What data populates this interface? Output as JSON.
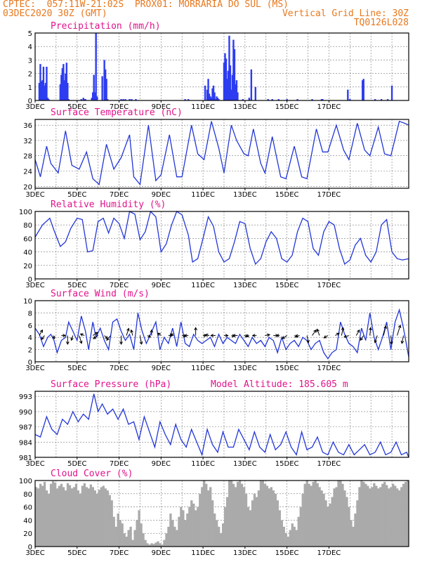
{
  "header": {
    "left_line1": "CPTEC:  057:11W-21:02S  PROX01: MORRARIA DO SUL (MS)",
    "left_line2": "03DEC2020 30Z (GMT)",
    "right_line2": "Vertical Grid Line: 30Z",
    "right_line3": "TQ0126L028"
  },
  "colors": {
    "header": "#e8781e",
    "title": "#e0148c",
    "line": "#2336d8",
    "bar": "#2d3cf0",
    "cloud": "#aaaaaa"
  },
  "x_ticks": [
    "3DEC",
    "5DEC",
    "7DEC",
    "9DEC",
    "11DEC",
    "13DEC",
    "15DEC",
    "17DEC"
  ],
  "chart_data": [
    {
      "type": "bar",
      "title": "Precipitation (mm/h)",
      "ylim": [
        0,
        5
      ],
      "yticks": [
        0,
        1,
        2,
        3,
        4,
        5
      ],
      "x_unit": "days since 3DEC 00Z",
      "x": [
        0.2,
        0.25,
        0.3,
        0.35,
        0.4,
        0.45,
        0.5,
        0.55,
        0.6,
        0.65,
        1.2,
        1.25,
        1.3,
        1.35,
        1.4,
        1.45,
        1.5,
        1.55,
        1.6,
        2.2,
        2.3,
        2.35,
        2.4,
        2.7,
        2.75,
        2.8,
        2.85,
        2.9,
        2.95,
        3.2,
        3.3,
        3.35,
        3.4,
        3.45,
        4.1,
        4.2,
        4.3,
        4.5,
        4.6,
        4.8,
        7.15,
        7.3,
        8.1,
        8.2,
        8.25,
        8.3,
        8.35,
        8.4,
        8.45,
        8.5,
        8.55,
        8.6,
        8.65,
        8.7,
        8.75,
        9.0,
        9.05,
        9.1,
        9.15,
        9.2,
        9.25,
        9.3,
        9.35,
        9.4,
        9.45,
        9.5,
        9.55,
        9.6,
        9.65,
        9.9,
        10.2,
        10.3,
        10.5,
        11.1,
        11.3,
        11.6,
        12.0,
        12.5,
        13.2,
        13.65,
        13.7,
        14.9,
        15.0,
        15.6,
        15.65,
        16.2,
        16.5,
        16.8,
        17.0
      ],
      "values": [
        1.3,
        2.7,
        1.4,
        1.5,
        2.5,
        1.1,
        1.3,
        2.5,
        0.2,
        0.1,
        1.2,
        1.9,
        2.4,
        2.7,
        1.5,
        2.0,
        2.8,
        1.3,
        0.1,
        0.1,
        0.2,
        0.1,
        0.1,
        0.2,
        0.6,
        1.9,
        0.6,
        5.0,
        0.3,
        1.8,
        3.0,
        2.3,
        1.6,
        0.1,
        0.1,
        0.1,
        0.1,
        0.1,
        0.1,
        0.1,
        0.1,
        0.1,
        1.1,
        0.8,
        1.6,
        0.5,
        0.3,
        0.2,
        0.9,
        1.1,
        0.6,
        0.1,
        0.3,
        0.2,
        0.1,
        2.8,
        3.5,
        3.1,
        1.6,
        2.2,
        4.8,
        2.6,
        0.8,
        1.9,
        4.5,
        3.8,
        1.2,
        1.5,
        0.6,
        0.1,
        0.2,
        2.3,
        1.0,
        0.1,
        0.1,
        0.1,
        0.1,
        0.1,
        0.1,
        0.1,
        0.1,
        0.8,
        0.1,
        1.5,
        1.6,
        0.1,
        0.1,
        0.1,
        1.1
      ]
    },
    {
      "type": "line",
      "title": "Surface Temperature (nC)",
      "ylim": [
        19.5,
        37.5
      ],
      "yticks": [
        20,
        24,
        28,
        32,
        36
      ],
      "x_unit": "days since 3DEC 00Z",
      "x": [
        0,
        0.25,
        0.55,
        0.75,
        1.1,
        1.45,
        1.75,
        2.1,
        2.45,
        2.75,
        3.05,
        3.4,
        3.75,
        4.1,
        4.5,
        4.7,
        5.0,
        5.4,
        5.75,
        6.0,
        6.4,
        6.75,
        7.0,
        7.45,
        7.75,
        8.05,
        8.4,
        8.75,
        9.0,
        9.35,
        9.6,
        9.95,
        10.15,
        10.4,
        10.75,
        10.95,
        11.3,
        11.7,
        11.95,
        12.35,
        12.7,
        12.95,
        13.4,
        13.7,
        13.95,
        14.35,
        14.7,
        14.95,
        15.35,
        15.7,
        15.95,
        16.35,
        16.65,
        16.95,
        17.35,
        17.6,
        17.8
      ],
      "values": [
        27,
        22.5,
        30.5,
        26,
        23.5,
        34.5,
        25.5,
        24.5,
        29,
        22,
        20.5,
        31,
        24.5,
        27.5,
        33.5,
        22.5,
        20.5,
        36,
        21.5,
        23,
        33.5,
        22.5,
        22.5,
        36,
        28.5,
        27,
        37,
        30,
        23.5,
        36,
        32,
        28.5,
        28,
        35,
        26,
        23.5,
        33,
        22.5,
        22,
        30.5,
        22.5,
        22,
        35,
        29,
        29,
        36,
        29.5,
        27,
        36.5,
        29.5,
        28,
        35.5,
        28.5,
        28,
        37,
        36.5,
        36
      ]
    },
    {
      "type": "line",
      "title": "Relative Humidity (%)",
      "ylim": [
        0,
        100
      ],
      "yticks": [
        0,
        20,
        40,
        60,
        80,
        100
      ],
      "x_unit": "days since 3DEC 00Z",
      "x": [
        0,
        0.35,
        0.7,
        0.9,
        1.2,
        1.45,
        1.7,
        2.0,
        2.25,
        2.5,
        2.75,
        3.0,
        3.25,
        3.5,
        3.75,
        4.0,
        4.25,
        4.5,
        4.75,
        5.0,
        5.25,
        5.5,
        5.75,
        6.0,
        6.25,
        6.5,
        6.75,
        7.0,
        7.3,
        7.5,
        7.75,
        8.0,
        8.25,
        8.5,
        8.75,
        9.0,
        9.25,
        9.5,
        9.75,
        10.0,
        10.25,
        10.5,
        10.75,
        11.0,
        11.25,
        11.5,
        11.75,
        12.0,
        12.25,
        12.5,
        12.75,
        13.0,
        13.25,
        13.5,
        13.75,
        14.0,
        14.25,
        14.5,
        14.75,
        15.0,
        15.25,
        15.5,
        15.75,
        16.0,
        16.25,
        16.5,
        16.75,
        17.0,
        17.25,
        17.5,
        17.8
      ],
      "values": [
        62,
        80,
        90,
        72,
        48,
        55,
        75,
        90,
        88,
        40,
        42,
        85,
        90,
        68,
        90,
        82,
        60,
        100,
        96,
        58,
        70,
        100,
        92,
        40,
        52,
        80,
        100,
        95,
        65,
        25,
        30,
        60,
        92,
        78,
        40,
        25,
        30,
        55,
        85,
        82,
        45,
        22,
        30,
        55,
        70,
        60,
        30,
        25,
        35,
        70,
        90,
        85,
        45,
        35,
        70,
        85,
        80,
        45,
        22,
        28,
        50,
        60,
        35,
        25,
        40,
        80,
        88,
        40,
        30,
        28,
        30
      ]
    },
    {
      "type": "line",
      "title": "Surface Wind (m/s)",
      "ylim": [
        0,
        10
      ],
      "yticks": [
        0,
        2,
        4,
        6,
        8,
        10
      ],
      "x_unit": "days since 3DEC 00Z",
      "x": [
        0,
        0.2,
        0.4,
        0.6,
        0.75,
        0.9,
        1.05,
        1.25,
        1.45,
        1.6,
        1.8,
        2.0,
        2.2,
        2.4,
        2.55,
        2.75,
        2.9,
        3.1,
        3.3,
        3.5,
        3.7,
        3.9,
        4.1,
        4.3,
        4.5,
        4.7,
        4.9,
        5.1,
        5.3,
        5.5,
        5.75,
        5.95,
        6.15,
        6.35,
        6.55,
        6.75,
        6.95,
        7.15,
        7.35,
        7.55,
        7.75,
        7.95,
        8.15,
        8.35,
        8.55,
        8.75,
        8.95,
        9.15,
        9.35,
        9.55,
        9.75,
        9.95,
        10.15,
        10.35,
        10.55,
        10.75,
        10.95,
        11.15,
        11.35,
        11.55,
        11.75,
        11.95,
        12.15,
        12.35,
        12.55,
        12.75,
        12.95,
        13.15,
        13.35,
        13.55,
        13.75,
        13.95,
        14.15,
        14.35,
        14.55,
        14.75,
        14.95,
        15.15,
        15.35,
        15.55,
        15.75,
        15.95,
        16.15,
        16.35,
        16.55,
        16.75,
        16.95,
        17.15,
        17.35,
        17.55,
        17.8
      ],
      "values": [
        5.5,
        4.5,
        2.5,
        4,
        4.5,
        3.5,
        1.5,
        3.5,
        4,
        6.5,
        5,
        3.5,
        7.5,
        5,
        2,
        6.5,
        4,
        5.5,
        3.5,
        2,
        6.5,
        7,
        5,
        3.5,
        4.5,
        2,
        8,
        5,
        3,
        4.5,
        6.5,
        2,
        4,
        3,
        5.5,
        2.5,
        6.5,
        3,
        2.5,
        4.5,
        3.5,
        3,
        3.5,
        4,
        2.5,
        4.5,
        3,
        4,
        3.5,
        3,
        4.5,
        3.5,
        2.5,
        4,
        3,
        3.5,
        2.5,
        4,
        3.5,
        1.5,
        4,
        2,
        3,
        3.5,
        2.5,
        4,
        3.5,
        2,
        3,
        3.5,
        1.5,
        0.5,
        1.5,
        2,
        6.5,
        4.5,
        3,
        2.5,
        1.5,
        5.5,
        3.5,
        8,
        4,
        2,
        4,
        6.5,
        2,
        6.5,
        8.5,
        5.5,
        0.8
      ],
      "arrows": [
        {
          "x": 0.2,
          "dx": 0.2,
          "dy": -0.35
        },
        {
          "x": 0.45,
          "dx": -0.2,
          "dy": 0.25
        },
        {
          "x": 0.85,
          "dx": 0.1,
          "dy": 0.2
        },
        {
          "x": 1.25,
          "dx": 0.25,
          "dy": 0.0
        },
        {
          "x": 1.55,
          "dx": 0.0,
          "dy": 0.55
        },
        {
          "x": 1.8,
          "dx": -0.1,
          "dy": 0.3
        },
        {
          "x": 2.1,
          "dx": 0.15,
          "dy": 0.5
        },
        {
          "x": 2.35,
          "dx": -0.25,
          "dy": -0.1
        },
        {
          "x": 2.75,
          "dx": 0.3,
          "dy": -0.2
        },
        {
          "x": 3.0,
          "dx": -0.3,
          "dy": 0.2
        },
        {
          "x": 3.3,
          "dx": 0.2,
          "dy": 0.2
        },
        {
          "x": 3.6,
          "dx": -0.25,
          "dy": 0.3
        },
        {
          "x": 4.1,
          "dx": 0.0,
          "dy": 0.55
        },
        {
          "x": 4.35,
          "dx": 0.15,
          "dy": -0.45
        },
        {
          "x": 4.65,
          "dx": -0.1,
          "dy": -0.35
        },
        {
          "x": 5.0,
          "dx": 0.1,
          "dy": 0.55
        },
        {
          "x": 5.35,
          "dx": 0.2,
          "dy": 0.1
        },
        {
          "x": 5.55,
          "dx": 0.0,
          "dy": -0.35
        },
        {
          "x": 6.0,
          "dx": -0.2,
          "dy": -0.15
        },
        {
          "x": 6.35,
          "dx": 0.25,
          "dy": 0.0
        },
        {
          "x": 6.6,
          "dx": -0.2,
          "dy": -0.1
        },
        {
          "x": 7.0,
          "dx": 0.25,
          "dy": 0.05
        },
        {
          "x": 7.3,
          "dx": -0.25,
          "dy": 0.0
        },
        {
          "x": 7.65,
          "dx": 0.0,
          "dy": -0.5
        },
        {
          "x": 8.0,
          "dx": 0.2,
          "dy": 0.0
        },
        {
          "x": 8.3,
          "dx": -0.25,
          "dy": -0.05
        },
        {
          "x": 8.6,
          "dx": -0.3,
          "dy": 0.0
        },
        {
          "x": 9.0,
          "dx": 0.25,
          "dy": 0.0
        },
        {
          "x": 9.35,
          "dx": 0.2,
          "dy": 0.05
        },
        {
          "x": 9.65,
          "dx": -0.3,
          "dy": 0.0
        },
        {
          "x": 9.95,
          "dx": 0.25,
          "dy": 0.05
        },
        {
          "x": 10.2,
          "dx": -0.2,
          "dy": 0.05
        },
        {
          "x": 10.55,
          "dx": -0.25,
          "dy": 0.0
        },
        {
          "x": 10.95,
          "dx": 0.3,
          "dy": -0.05
        },
        {
          "x": 11.35,
          "dx": 0.3,
          "dy": 0.0
        },
        {
          "x": 11.65,
          "dx": -0.2,
          "dy": 0.0
        },
        {
          "x": 12.0,
          "dx": -0.3,
          "dy": 0.2
        },
        {
          "x": 12.35,
          "dx": 0.2,
          "dy": 0.1
        },
        {
          "x": 12.6,
          "dx": -0.25,
          "dy": 0.05
        },
        {
          "x": 12.95,
          "dx": 0.1,
          "dy": 0.45
        },
        {
          "x": 13.2,
          "dx": 0.25,
          "dy": -0.35
        },
        {
          "x": 13.55,
          "dx": -0.15,
          "dy": -0.4
        },
        {
          "x": 13.95,
          "dx": -0.25,
          "dy": 0.15
        },
        {
          "x": 14.3,
          "dx": 0.25,
          "dy": -0.15
        },
        {
          "x": 14.6,
          "dx": 0.1,
          "dy": -0.5
        },
        {
          "x": 14.95,
          "dx": -0.3,
          "dy": 0.1
        },
        {
          "x": 15.3,
          "dx": 0.2,
          "dy": -0.35
        },
        {
          "x": 15.65,
          "dx": -0.2,
          "dy": 0.3
        },
        {
          "x": 15.95,
          "dx": 0.05,
          "dy": -0.5
        },
        {
          "x": 16.3,
          "dx": -0.15,
          "dy": 0.45
        },
        {
          "x": 16.6,
          "dx": 0.15,
          "dy": -0.6
        },
        {
          "x": 16.95,
          "dx": 0.05,
          "dy": 0.55
        },
        {
          "x": 17.25,
          "dx": 0.2,
          "dy": -0.65
        },
        {
          "x": 17.55,
          "dx": -0.1,
          "dy": 0.5
        }
      ]
    },
    {
      "type": "line",
      "title": "Surface Pressure (hPa)",
      "annotation": "Model Altitude: 185.605 m",
      "ylim": [
        981,
        994
      ],
      "yticks": [
        981,
        984,
        987,
        990,
        993
      ],
      "x_unit": "days since 3DEC 00Z",
      "x": [
        0,
        0.25,
        0.55,
        0.8,
        1.05,
        1.3,
        1.55,
        1.8,
        2.05,
        2.3,
        2.55,
        2.8,
        3.0,
        3.2,
        3.45,
        3.7,
        3.95,
        4.2,
        4.45,
        4.7,
        4.95,
        5.2,
        5.45,
        5.7,
        5.95,
        6.2,
        6.45,
        6.7,
        6.95,
        7.2,
        7.45,
        7.7,
        7.95,
        8.2,
        8.45,
        8.7,
        8.95,
        9.2,
        9.45,
        9.7,
        9.95,
        10.2,
        10.45,
        10.7,
        10.95,
        11.2,
        11.45,
        11.7,
        11.95,
        12.2,
        12.45,
        12.7,
        12.95,
        13.2,
        13.45,
        13.7,
        13.95,
        14.2,
        14.45,
        14.7,
        14.95,
        15.2,
        15.45,
        15.7,
        15.95,
        16.2,
        16.45,
        16.7,
        16.95,
        17.2,
        17.45,
        17.7,
        17.8
      ],
      "values": [
        985.5,
        985.0,
        989.0,
        986.5,
        985.5,
        988.5,
        987.5,
        990.0,
        988.0,
        989.5,
        988.5,
        993.5,
        990.0,
        991.5,
        989.5,
        990.5,
        988.5,
        990.5,
        987.5,
        988.0,
        984.5,
        989.0,
        986.0,
        983.0,
        988.0,
        985.5,
        983.5,
        987.5,
        984.5,
        983.0,
        986.5,
        984.0,
        981.5,
        986.5,
        983.5,
        982.0,
        986.0,
        983.0,
        983.0,
        986.5,
        984.5,
        982.5,
        986.0,
        983.0,
        982.0,
        985.5,
        982.5,
        983.5,
        986.0,
        983.0,
        981.5,
        986.0,
        982.5,
        983.0,
        985.0,
        982.0,
        981.5,
        984.0,
        982.0,
        981.5,
        983.5,
        981.5,
        982.5,
        983.5,
        981.5,
        982.0,
        984.0,
        981.5,
        982.0,
        984.0,
        981.5,
        982.0,
        981.0
      ]
    },
    {
      "type": "bar",
      "title": "Cloud Cover (%)",
      "ylim": [
        0,
        100
      ],
      "yticks": [
        0,
        20,
        40,
        60,
        80,
        100
      ],
      "x_unit": "days since 3DEC 00Z",
      "x_start": 0,
      "x_step": 0.1,
      "values": [
        90,
        88,
        95,
        92,
        98,
        85,
        80,
        95,
        99,
        97,
        88,
        92,
        95,
        90,
        85,
        96,
        93,
        88,
        90,
        95,
        85,
        80,
        92,
        96,
        90,
        88,
        94,
        90,
        85,
        80,
        86,
        90,
        92,
        88,
        85,
        78,
        70,
        45,
        30,
        50,
        40,
        35,
        20,
        15,
        25,
        30,
        10,
        25,
        40,
        55,
        35,
        20,
        10,
        5,
        3,
        5,
        4,
        6,
        8,
        5,
        3,
        10,
        20,
        30,
        50,
        40,
        30,
        25,
        45,
        60,
        55,
        40,
        50,
        60,
        70,
        65,
        55,
        60,
        80,
        90,
        100,
        95,
        85,
        90,
        70,
        50,
        40,
        30,
        20,
        35,
        60,
        75,
        100,
        100,
        95,
        90,
        98,
        100,
        95,
        90,
        80,
        60,
        55,
        70,
        80,
        75,
        85,
        100,
        100,
        95,
        92,
        88,
        90,
        85,
        80,
        70,
        55,
        40,
        30,
        20,
        15,
        25,
        35,
        30,
        25,
        45,
        60,
        80,
        95,
        100,
        95,
        92,
        98,
        100,
        96,
        90,
        85,
        80,
        70,
        60,
        65,
        75,
        88,
        90,
        100,
        100,
        95,
        85,
        75,
        60,
        40,
        30,
        50,
        70,
        90,
        100,
        98,
        95,
        92,
        88,
        90,
        96,
        92,
        88,
        90,
        95,
        98,
        93,
        88,
        90,
        95,
        92,
        88,
        85,
        90,
        95,
        98,
        100
      ]
    }
  ]
}
